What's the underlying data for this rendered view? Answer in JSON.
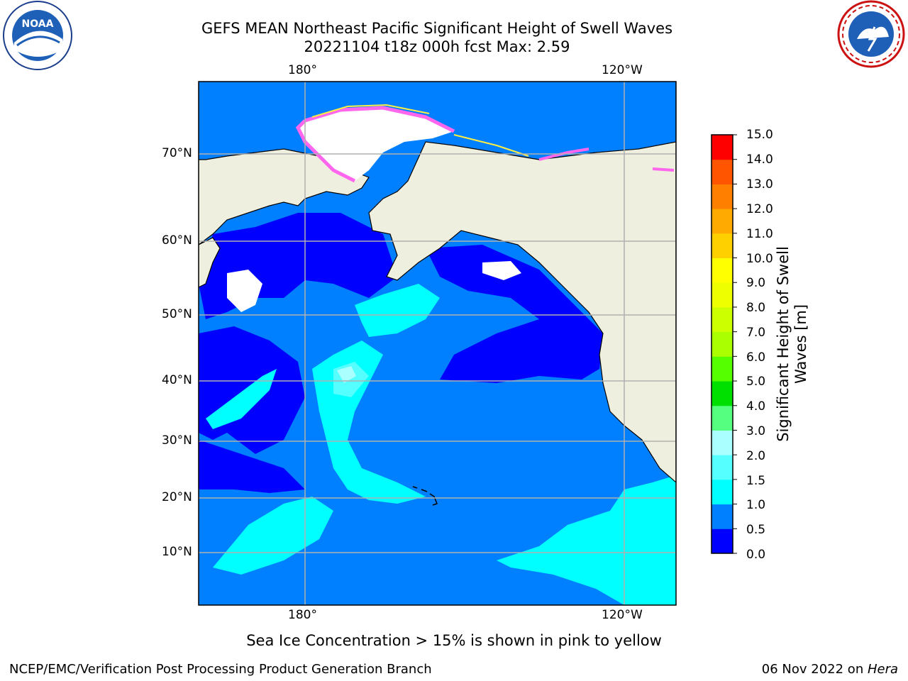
{
  "title": "GEFS MEAN Northeast Pacific Significant Height of Swell Waves",
  "subtitle": "20221104 t18z 000h fcst   Max: 2.59",
  "lon_labels": [
    "180°",
    "120°W"
  ],
  "lat_labels": [
    "70°N",
    "60°N",
    "50°N",
    "40°N",
    "30°N",
    "20°N",
    "10°N"
  ],
  "colorbar": {
    "label_line1": "Significant Height of Swell",
    "label_line2": "Waves [m]",
    "ticks": [
      "15.0",
      "14.0",
      "13.0",
      "12.0",
      "11.0",
      "10.0",
      "9.0",
      "8.0",
      "7.0",
      "6.0",
      "5.0",
      "4.0",
      "3.0",
      "2.0",
      "1.5",
      "1.0",
      "0.5",
      "0.0"
    ],
    "colors_bottom_to_top": [
      "#0000ff",
      "#0080ff",
      "#00ffff",
      "#55ffff",
      "#aaffff",
      "#55ff80",
      "#00e000",
      "#55ff00",
      "#aaff00",
      "#ccff00",
      "#eeff00",
      "#ffff00",
      "#ffd000",
      "#ffaa00",
      "#ff8000",
      "#ff5500",
      "#ff0000"
    ]
  },
  "colors": {
    "land": "#efefdf",
    "ice_pink": "#ff66ee",
    "ice_yellow": "#ffee44",
    "grid": "#b0b0b0"
  },
  "caption": "Sea Ice Concentration > 15% is shown in pink to yellow",
  "footer_left": "NCEP/EMC/Verification Post Processing Product Generation Branch",
  "footer_date": "06 Nov 2022 on ",
  "footer_host": "Hera",
  "logos": {
    "left": "NOAA",
    "right": "NATIONAL WEATHER SERVICE"
  }
}
